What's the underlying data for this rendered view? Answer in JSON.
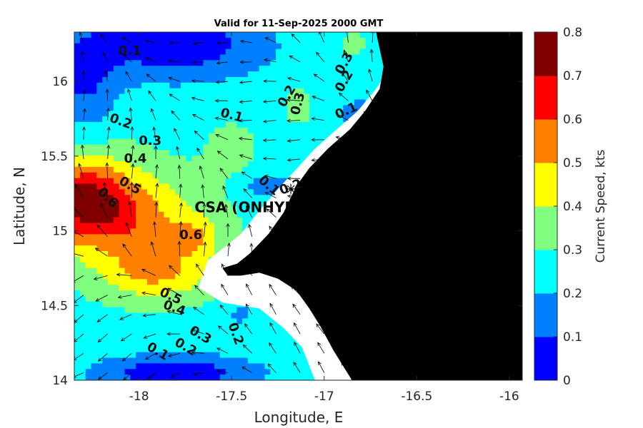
{
  "chart_data": {
    "type": "heatmap",
    "title": "Valid for 11-Sep-2025 2000 GMT",
    "xlabel": "Longitude, E",
    "ylabel": "Latitude, N",
    "colorbar_label": "Current Speed, kts",
    "xlim": [
      -18.35,
      -15.93
    ],
    "ylim": [
      14.0,
      16.33
    ],
    "xticks": [
      -18,
      -17.5,
      -17,
      -16.5,
      -16
    ],
    "xtick_labels": [
      "-18",
      "-17.5",
      "-17",
      "-16.5",
      "-16"
    ],
    "yticks": [
      14,
      14.5,
      15,
      15.5,
      16
    ],
    "ytick_labels": [
      "14",
      "14.5",
      "15",
      "15.5",
      "16"
    ],
    "color_levels": [
      0,
      0.1,
      0.2,
      0.3,
      0.4,
      0.5,
      0.6,
      0.7,
      0.8
    ],
    "colorbar_tick_labels": [
      "0",
      "0.1",
      "0.2",
      "0.3",
      "0.4",
      "0.5",
      "0.6",
      "0.7",
      "0.8"
    ],
    "colors": [
      "#0000ff",
      "#0080ff",
      "#00ffff",
      "#80ff80",
      "#ffff00",
      "#ff8000",
      "#ff0000",
      "#800000"
    ],
    "land_color": "#000000",
    "annotation": {
      "text": "CSA (ONHYM) PPL EF",
      "lon": -17.24,
      "lat": 15.15
    },
    "marker": {
      "lon": -17.18,
      "lat": 15.28
    },
    "contour_labels": [
      {
        "text": "0.1",
        "lon": -18.05,
        "lat": 16.2,
        "angle": 0
      },
      {
        "text": "0.2",
        "lon": -18.1,
        "lat": 15.73,
        "angle": 20
      },
      {
        "text": "0.3",
        "lon": -17.94,
        "lat": 15.6,
        "angle": 0
      },
      {
        "text": "0.4",
        "lon": -18.02,
        "lat": 15.48,
        "angle": 0
      },
      {
        "text": "0.5",
        "lon": -18.05,
        "lat": 15.3,
        "angle": 30
      },
      {
        "text": "0.6",
        "lon": -18.17,
        "lat": 15.22,
        "angle": 45
      },
      {
        "text": "0.6",
        "lon": -17.72,
        "lat": 14.97,
        "angle": 0
      },
      {
        "text": "0.1",
        "lon": -17.5,
        "lat": 15.77,
        "angle": 15
      },
      {
        "text": "0.2",
        "lon": -17.2,
        "lat": 15.9,
        "angle": -60
      },
      {
        "text": "0.3",
        "lon": -17.14,
        "lat": 15.85,
        "angle": -75
      },
      {
        "text": "0.3",
        "lon": -16.89,
        "lat": 16.12,
        "angle": -60
      },
      {
        "text": "0.2",
        "lon": -16.89,
        "lat": 16.0,
        "angle": -60
      },
      {
        "text": "0.1",
        "lon": -16.88,
        "lat": 15.8,
        "angle": -25
      },
      {
        "text": "0.1",
        "lon": -17.3,
        "lat": 15.3,
        "angle": 40
      },
      {
        "text": "0.2",
        "lon": -17.18,
        "lat": 15.29,
        "angle": -20
      },
      {
        "text": "0.5",
        "lon": -17.83,
        "lat": 14.56,
        "angle": 25
      },
      {
        "text": "0.4",
        "lon": -17.81,
        "lat": 14.48,
        "angle": 20
      },
      {
        "text": "0.3",
        "lon": -17.67,
        "lat": 14.3,
        "angle": 30
      },
      {
        "text": "0.2",
        "lon": -17.75,
        "lat": 14.22,
        "angle": 30
      },
      {
        "text": "0.1",
        "lon": -17.9,
        "lat": 14.19,
        "angle": 30
      },
      {
        "text": "0.2",
        "lon": -17.48,
        "lat": 14.31,
        "angle": 70
      }
    ]
  }
}
